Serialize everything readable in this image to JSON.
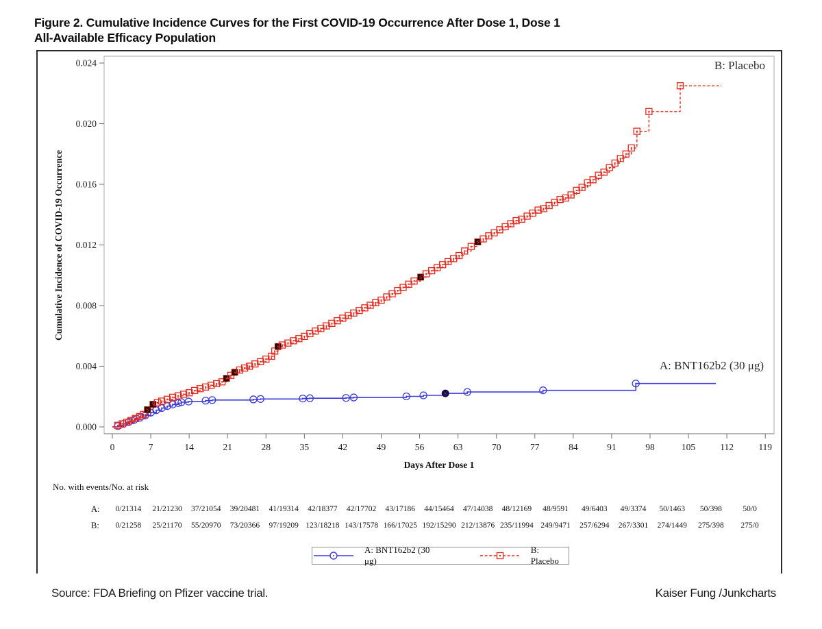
{
  "title": {
    "line1": "Figure 2. Cumulative Incidence Curves for the First COVID-19 Occurrence After Dose 1, Dose 1",
    "line2": "All-Available Efficacy Population"
  },
  "chart_data": {
    "type": "line",
    "title": "Figure 2. Cumulative Incidence Curves for the First COVID-19 Occurrence After Dose 1, Dose 1 All-Available Efficacy Population",
    "xlabel": "Days After Dose 1",
    "ylabel": "Cumulative Incidence of COVID-19 Occurrence",
    "xlim": [
      0,
      119
    ],
    "ylim": [
      0,
      0.024
    ],
    "grid": false,
    "legend_position": "bottom-center",
    "x_ticks": [
      0,
      7,
      14,
      21,
      28,
      35,
      42,
      49,
      56,
      63,
      70,
      77,
      84,
      91,
      98,
      105,
      112,
      119
    ],
    "y_tick_values": [
      0,
      0.004,
      0.008,
      0.012,
      0.016,
      0.02,
      0.024
    ],
    "y_tick_labels": [
      "0.000",
      "0.004",
      "0.008",
      "0.012",
      "0.016",
      "0.020",
      "0.024"
    ],
    "severe_case_marker": "S",
    "series": [
      {
        "id": "a",
        "name": "A: BNT162b2 (30 μg)",
        "color": "#3b3bdc",
        "severe_fill": "#10104f",
        "marker": "circle",
        "line_style": "solid",
        "line_end_day": 110,
        "points": [
          [
            1,
            5e-05
          ],
          [
            2,
            0.00019
          ],
          [
            3,
            0.00033
          ],
          [
            4,
            0.00047
          ],
          [
            5,
            0.0006
          ],
          [
            6,
            0.00075
          ],
          [
            7,
            0.00094
          ],
          [
            8,
            0.0011
          ],
          [
            9,
            0.00124
          ],
          [
            10,
            0.00137
          ],
          [
            11,
            0.00148
          ],
          [
            12,
            0.00157
          ],
          [
            12.6,
            0.00163
          ],
          [
            13.9,
            0.00167
          ],
          [
            17,
            0.00173
          ],
          [
            18.2,
            0.00177
          ],
          [
            25.7,
            0.00181
          ],
          [
            27,
            0.00184
          ],
          [
            34.7,
            0.00187
          ],
          [
            36,
            0.00189
          ],
          [
            42.6,
            0.00191
          ],
          [
            44,
            0.00194
          ],
          [
            53.6,
            0.00201
          ],
          [
            56.7,
            0.00208
          ],
          [
            60.7,
            0.00221,
            1
          ],
          [
            64.7,
            0.0023
          ],
          [
            78.5,
            0.00241
          ],
          [
            95.4,
            0.00286
          ]
        ]
      },
      {
        "id": "b",
        "name": "B: Placebo",
        "color": "#e8261a",
        "severe_fill": "#170604",
        "marker": "square",
        "line_style": "dashed",
        "line_end_day": 111,
        "points": [
          [
            1,
            0.0001
          ],
          [
            1.8,
            0.0002
          ],
          [
            2.6,
            0.0003
          ],
          [
            3.4,
            0.00042
          ],
          [
            4.2,
            0.00055
          ],
          [
            5,
            0.00068
          ],
          [
            5.7,
            0.00082
          ],
          [
            6.4,
            0.00113,
            1
          ],
          [
            7.4,
            0.00149,
            1
          ],
          [
            8.2,
            0.0016
          ],
          [
            9,
            0.0017
          ],
          [
            10,
            0.00182
          ],
          [
            11,
            0.00195
          ],
          [
            12,
            0.00205
          ],
          [
            13,
            0.00215
          ],
          [
            14,
            0.00225
          ],
          [
            15,
            0.0024
          ],
          [
            16,
            0.00252
          ],
          [
            17,
            0.00263
          ],
          [
            18,
            0.00274
          ],
          [
            19,
            0.00285
          ],
          [
            20,
            0.00297
          ],
          [
            20.8,
            0.0032,
            1
          ],
          [
            21.6,
            0.0034
          ],
          [
            22.3,
            0.0036,
            1
          ],
          [
            23.2,
            0.00375
          ],
          [
            24.1,
            0.00388
          ],
          [
            25,
            0.004
          ],
          [
            26,
            0.00415
          ],
          [
            27,
            0.0043
          ],
          [
            28,
            0.00447
          ],
          [
            29,
            0.00466
          ],
          [
            29.6,
            0.005
          ],
          [
            30.2,
            0.0053,
            1
          ],
          [
            31,
            0.0054
          ],
          [
            32,
            0.00553
          ],
          [
            33,
            0.00568
          ],
          [
            34,
            0.00582
          ],
          [
            35,
            0.00597
          ],
          [
            36,
            0.00615
          ],
          [
            37,
            0.00632
          ],
          [
            38,
            0.00649
          ],
          [
            39,
            0.00666
          ],
          [
            40,
            0.00683
          ],
          [
            41,
            0.007
          ],
          [
            42,
            0.00717
          ],
          [
            43,
            0.00734
          ],
          [
            44,
            0.00751
          ],
          [
            45,
            0.00768
          ],
          [
            46,
            0.00785
          ],
          [
            47,
            0.00802
          ],
          [
            48,
            0.00819
          ],
          [
            49,
            0.00836
          ],
          [
            50,
            0.00857
          ],
          [
            51,
            0.00878
          ],
          [
            52,
            0.00899
          ],
          [
            53,
            0.0092
          ],
          [
            54,
            0.00941
          ],
          [
            55,
            0.00962
          ],
          [
            56.2,
            0.00988,
            1
          ],
          [
            57.2,
            0.0101
          ],
          [
            58.2,
            0.0103
          ],
          [
            59.2,
            0.0105
          ],
          [
            60.2,
            0.0107
          ],
          [
            61.2,
            0.0109
          ],
          [
            62.2,
            0.0111
          ],
          [
            63.2,
            0.0113
          ],
          [
            64.2,
            0.0116
          ],
          [
            65.4,
            0.0119
          ],
          [
            66.6,
            0.0122,
            1
          ],
          [
            67.6,
            0.0124
          ],
          [
            68.6,
            0.0126
          ],
          [
            69.6,
            0.0128
          ],
          [
            70.6,
            0.013
          ],
          [
            71.6,
            0.0132
          ],
          [
            72.6,
            0.0134
          ],
          [
            73.6,
            0.0136
          ],
          [
            74.6,
            0.0137
          ],
          [
            75.6,
            0.0139
          ],
          [
            76.6,
            0.0141
          ],
          [
            77.6,
            0.0143
          ],
          [
            78.6,
            0.0144
          ],
          [
            79.6,
            0.0146
          ],
          [
            80.6,
            0.0148
          ],
          [
            81.6,
            0.015
          ],
          [
            82.6,
            0.0151
          ],
          [
            83.6,
            0.0153
          ],
          [
            84.6,
            0.0156
          ],
          [
            85.6,
            0.0158
          ],
          [
            86.6,
            0.0161
          ],
          [
            87.6,
            0.0163
          ],
          [
            88.6,
            0.0166
          ],
          [
            89.6,
            0.0168
          ],
          [
            90.6,
            0.0171
          ],
          [
            91.6,
            0.0174
          ],
          [
            92.6,
            0.0177
          ],
          [
            93.6,
            0.018
          ],
          [
            94.6,
            0.0184
          ],
          [
            95.6,
            0.0195
          ],
          [
            97.8,
            0.0208
          ],
          [
            103.5,
            0.0225
          ]
        ]
      }
    ]
  },
  "risk_table": {
    "header": "No. with events/No. at risk",
    "rows": [
      {
        "label": "A:",
        "values": [
          "0/21314",
          "21/21230",
          "37/21054",
          "39/20481",
          "41/19314",
          "42/18377",
          "42/17702",
          "43/17186",
          "44/15464",
          "47/14038",
          "48/12169",
          "48/9591",
          "49/6403",
          "49/3374",
          "50/1463",
          "50/398",
          "50/0"
        ]
      },
      {
        "label": "B:",
        "values": [
          "0/21258",
          "25/21170",
          "55/20970",
          "73/20366",
          "97/19209",
          "123/18218",
          "143/17578",
          "166/17025",
          "192/15290",
          "212/13876",
          "235/11994",
          "249/9471",
          "257/6294",
          "267/3301",
          "274/1449",
          "275/398",
          "275/0"
        ]
      }
    ]
  },
  "footer": {
    "source": "Source: FDA Briefing on Pfizer vaccine trial.",
    "credit": "Kaiser Fung /Junkcharts"
  }
}
